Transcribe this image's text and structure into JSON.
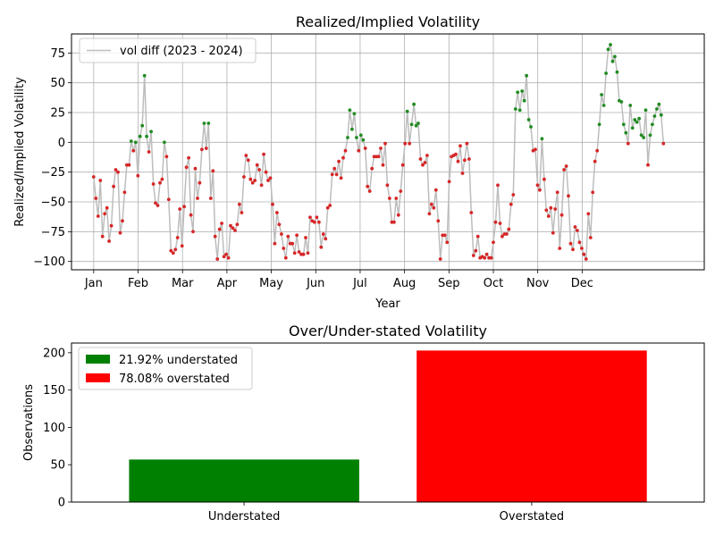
{
  "chart_data": [
    {
      "type": "line",
      "title": "Realized/Implied Volatility",
      "xlabel": "Year",
      "ylabel": "Realized/Implied Volatility",
      "ylim": [
        -107,
        91
      ],
      "yticks": [
        -100,
        -75,
        -50,
        -25,
        0,
        25,
        50,
        75
      ],
      "ytick_labels": [
        "−100",
        "−75",
        "−50",
        "−25",
        "0",
        "25",
        "50",
        "75"
      ],
      "xlim": [
        -0.5,
        13.75
      ],
      "xticks": [
        0,
        1,
        2,
        3,
        4,
        5,
        6,
        7,
        8,
        9,
        10,
        11
      ],
      "xtick_labels": [
        "Jan",
        "Feb",
        "Mar",
        "Apr",
        "May",
        "Jun",
        "Jul",
        "Aug",
        "Sep",
        "Oct",
        "Nov",
        "Dec"
      ],
      "x_unit": "months since Jan",
      "grid": true,
      "legend": {
        "position": "top-left",
        "entries": [
          "vol diff (2023 - 2024)"
        ]
      },
      "series": [
        {
          "name": "vol diff (2023 - 2024)",
          "line_color": "#bdbdbd",
          "positive_color": "#228b22",
          "negative_color": "#d62728",
          "values": [
            -29,
            -47,
            -62,
            -32,
            -79,
            -60,
            -55,
            -83,
            -70,
            -37,
            -23,
            -25,
            -76,
            -66,
            -42,
            -19,
            -19,
            1,
            -7,
            0,
            -28,
            5,
            14,
            56,
            5,
            -8,
            9,
            -35,
            -51,
            -53,
            -34,
            -31,
            0,
            -12,
            -48,
            -91,
            -93,
            -90,
            -80,
            -56,
            -87,
            -54,
            -21,
            -13,
            -61,
            -75,
            -22,
            -47,
            -34,
            -6,
            16,
            -5,
            16,
            -47,
            -24,
            -79,
            -98,
            -73,
            -68,
            -96,
            -94,
            -97,
            -70,
            -72,
            -74,
            -69,
            -52,
            -59,
            -29,
            -11,
            -15,
            -31,
            -34,
            -32,
            -19,
            -23,
            -36,
            -10,
            -25,
            -32,
            -30,
            -52,
            -85,
            -59,
            -69,
            -77,
            -89,
            -97,
            -79,
            -85,
            -85,
            -93,
            -78,
            -92,
            -94,
            -94,
            -80,
            -93,
            -63,
            -66,
            -67,
            -63,
            -67,
            -88,
            -77,
            -81,
            -55,
            -53,
            -27,
            -22,
            -27,
            -16,
            -30,
            -13,
            -7,
            4,
            27,
            11,
            24,
            4,
            -7,
            6,
            2,
            -5,
            -37,
            -41,
            -22,
            -12,
            -12,
            -12,
            -5,
            -19,
            -1,
            -36,
            -47,
            -67,
            -67,
            -47,
            -61,
            -41,
            -19,
            -1,
            26,
            -1,
            15,
            32,
            14,
            16,
            -14,
            -19,
            -17,
            -11,
            -60,
            -52,
            -55,
            -40,
            -66,
            -98,
            -78,
            -78,
            -84,
            -33,
            -12,
            -11,
            -10,
            -16,
            -3,
            -26,
            -15,
            -1,
            -14,
            -59,
            -95,
            -91,
            -79,
            -97,
            -96,
            -97,
            -94,
            -97,
            -97,
            -84,
            -67,
            -36,
            -68,
            -79,
            -77,
            -77,
            -73,
            -52,
            -44,
            28,
            42,
            27,
            43,
            35,
            56,
            19,
            13,
            -7,
            -6,
            -36,
            -40,
            3,
            -31,
            -57,
            -62,
            -55,
            -76,
            -56,
            -42,
            -89,
            -61,
            -23,
            -20,
            -45,
            -85,
            -90,
            -71,
            -74,
            -84,
            -89,
            -94,
            -98,
            -60,
            -80,
            -42,
            -16,
            -7,
            15,
            40,
            31,
            58,
            78,
            82,
            68,
            72,
            59,
            35,
            34,
            15,
            8,
            -1,
            31,
            12,
            19,
            17,
            20,
            6,
            4,
            27,
            -19,
            6,
            15,
            22,
            28,
            32,
            23,
            -1
          ]
        }
      ]
    },
    {
      "type": "bar",
      "title": "Over/Under-stated Volatility",
      "xlabel": "",
      "ylabel": "Observations",
      "categories": [
        "Understated",
        "Overstated"
      ],
      "values": [
        57,
        203
      ],
      "colors": [
        "#008000",
        "#ff0000"
      ],
      "ylim": [
        0,
        213
      ],
      "yticks": [
        0,
        50,
        100,
        150,
        200
      ],
      "grid": false,
      "legend": {
        "position": "top-left",
        "entries": [
          "21.92% understated",
          "78.08% overstated"
        ]
      }
    }
  ]
}
